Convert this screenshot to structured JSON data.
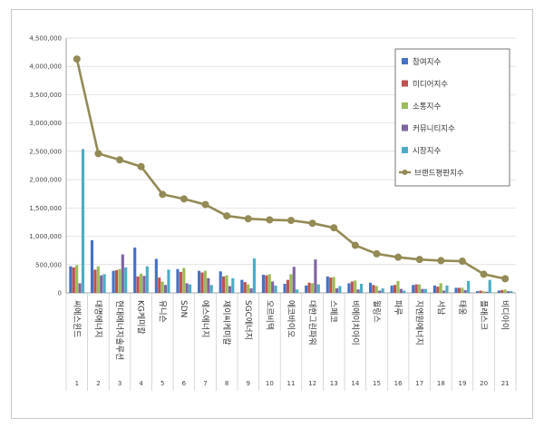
{
  "chart_data": {
    "type": "bar",
    "title": "",
    "xlabel": "",
    "ylabel": "",
    "ylim": [
      0,
      4500000
    ],
    "yticks": [
      "0",
      "500,000",
      "1,000,000",
      "1,500,000",
      "2,000,000",
      "2,500,000",
      "3,000,000",
      "3,500,000",
      "4,000,000",
      "4,500,000"
    ],
    "ytick_values": [
      0,
      500000,
      1000000,
      1500000,
      2000000,
      2500000,
      3000000,
      3500000,
      4000000,
      4500000
    ],
    "grid": true,
    "legend_position": "top-right",
    "categories": [
      "씨에스윈드",
      "대명에너지",
      "현대에너지솔루션",
      "KG케미칼",
      "유니슨",
      "SDN",
      "에스에너지",
      "제이씨케미칼",
      "SGC에너지",
      "오르비텍",
      "에코바이오",
      "대한그린파워",
      "스페코",
      "비에이치아이",
      "윌링스",
      "파루",
      "지엔원에너지",
      "서남",
      "태웅",
      "플래스크",
      "비디아이"
    ],
    "ranks": [
      "1",
      "2",
      "3",
      "4",
      "5",
      "6",
      "7",
      "8",
      "9",
      "10",
      "11",
      "12",
      "13",
      "14",
      "15",
      "16",
      "17",
      "18",
      "19",
      "20",
      "21"
    ],
    "series": [
      {
        "name": "참여지수",
        "color": "#4472c4",
        "values": [
          470000,
          930000,
          390000,
          800000,
          600000,
          420000,
          390000,
          380000,
          230000,
          320000,
          160000,
          130000,
          290000,
          170000,
          180000,
          130000,
          140000,
          130000,
          90000,
          30000,
          40000
        ]
      },
      {
        "name": "미디어지수",
        "color": "#c0504d",
        "values": [
          450000,
          410000,
          400000,
          290000,
          270000,
          370000,
          360000,
          290000,
          190000,
          310000,
          230000,
          180000,
          270000,
          200000,
          140000,
          140000,
          150000,
          110000,
          90000,
          40000,
          50000
        ]
      },
      {
        "name": "소통지수",
        "color": "#9bbb59",
        "values": [
          490000,
          470000,
          420000,
          340000,
          200000,
          440000,
          390000,
          310000,
          150000,
          330000,
          330000,
          170000,
          280000,
          220000,
          120000,
          210000,
          150000,
          170000,
          90000,
          30000,
          60000
        ]
      },
      {
        "name": "커뮤니티지수",
        "color": "#8064a2",
        "values": [
          170000,
          310000,
          680000,
          300000,
          140000,
          170000,
          260000,
          120000,
          80000,
          200000,
          460000,
          590000,
          80000,
          60000,
          40000,
          70000,
          70000,
          40000,
          50000,
          20000,
          30000
        ]
      },
      {
        "name": "시장지수",
        "color": "#4bacc6",
        "values": [
          2540000,
          330000,
          450000,
          470000,
          410000,
          150000,
          140000,
          260000,
          610000,
          130000,
          60000,
          150000,
          120000,
          160000,
          80000,
          40000,
          70000,
          130000,
          210000,
          230000,
          30000
        ]
      }
    ],
    "line_series": {
      "name": "브랜드평판지수",
      "color": "#948a54",
      "values": [
        4130000,
        2460000,
        2350000,
        2230000,
        1740000,
        1660000,
        1560000,
        1360000,
        1310000,
        1290000,
        1280000,
        1230000,
        1150000,
        840000,
        690000,
        630000,
        590000,
        570000,
        560000,
        330000,
        250000
      ]
    }
  }
}
